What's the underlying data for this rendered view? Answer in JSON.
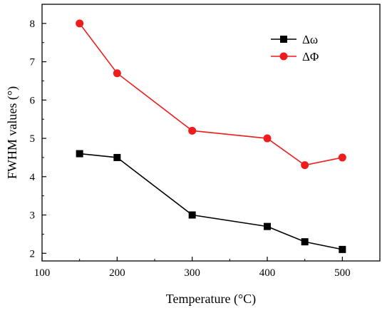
{
  "chart_data": {
    "type": "line",
    "title": "",
    "xlabel": "Temperature (°C)",
    "ylabel": "FWHM values (°)",
    "xlim": [
      100,
      550
    ],
    "ylim": [
      1.8,
      8.5
    ],
    "x_ticks": [
      100,
      200,
      300,
      400,
      500
    ],
    "y_ticks": [
      2,
      3,
      4,
      5,
      6,
      7,
      8
    ],
    "x_tick_labels": [
      "100",
      "200",
      "300",
      "400",
      "500"
    ],
    "y_tick_labels": [
      "2",
      "3",
      "4",
      "5",
      "6",
      "7",
      "8"
    ],
    "legend_position": "top-right",
    "grid": false,
    "series": [
      {
        "name": "Δω",
        "color": "#000000",
        "marker": "square",
        "x": [
          150,
          200,
          300,
          400,
          450,
          500
        ],
        "y": [
          4.6,
          4.5,
          3.0,
          2.7,
          2.3,
          2.1
        ]
      },
      {
        "name": "ΔΦ",
        "color": "#ee1c1c",
        "marker": "circle",
        "x": [
          150,
          200,
          300,
          400,
          450,
          500
        ],
        "y": [
          8.0,
          6.7,
          5.2,
          5.0,
          4.3,
          4.5
        ]
      }
    ]
  }
}
